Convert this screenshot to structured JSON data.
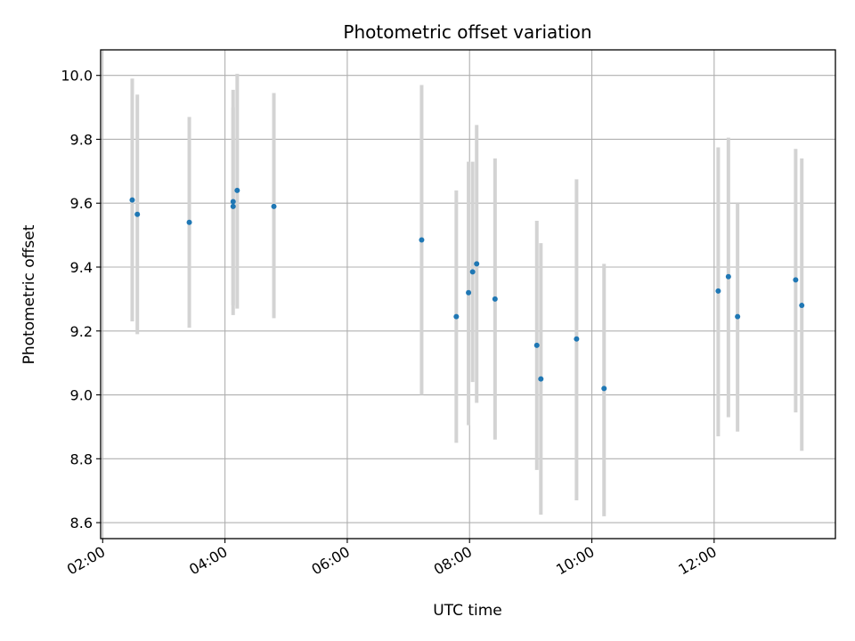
{
  "chart_data": {
    "type": "scatter",
    "title": "Photometric offset variation",
    "xlabel": "UTC time",
    "ylabel": "Photometric offset",
    "x_axis_kind": "time",
    "xlim": [
      "01:58",
      "13:59"
    ],
    "ylim": [
      8.55,
      10.08
    ],
    "grid": true,
    "x_ticks": [
      "02:00",
      "04:00",
      "06:00",
      "08:00",
      "10:00",
      "12:00"
    ],
    "y_ticks": [
      "8.6",
      "8.8",
      "9.0",
      "9.2",
      "9.4",
      "9.6",
      "9.8",
      "10.0"
    ],
    "colors": {
      "point": "#1f77b4",
      "errorbar": "#d3d3d3",
      "grid": "#b0b0b0"
    },
    "points": [
      {
        "x": "02:29",
        "y": 9.61,
        "y_low": 9.23,
        "y_high": 9.99
      },
      {
        "x": "02:34",
        "y": 9.565,
        "y_low": 9.19,
        "y_high": 9.94
      },
      {
        "x": "03:25",
        "y": 9.54,
        "y_low": 9.21,
        "y_high": 9.87
      },
      {
        "x": "04:08",
        "y": 9.605,
        "y_low": 9.25,
        "y_high": 9.955
      },
      {
        "x": "04:08",
        "y": 9.59,
        "y_low": 9.28,
        "y_high": 9.9
      },
      {
        "x": "04:12",
        "y": 9.64,
        "y_low": 9.27,
        "y_high": 10.005
      },
      {
        "x": "04:48",
        "y": 9.59,
        "y_low": 9.24,
        "y_high": 9.945
      },
      {
        "x": "07:13",
        "y": 9.485,
        "y_low": 9.0,
        "y_high": 9.97
      },
      {
        "x": "07:47",
        "y": 9.245,
        "y_low": 8.85,
        "y_high": 9.64
      },
      {
        "x": "07:59",
        "y": 9.32,
        "y_low": 8.905,
        "y_high": 9.73
      },
      {
        "x": "08:03",
        "y": 9.385,
        "y_low": 9.04,
        "y_high": 9.73
      },
      {
        "x": "08:07",
        "y": 9.41,
        "y_low": 8.975,
        "y_high": 9.845
      },
      {
        "x": "08:25",
        "y": 9.3,
        "y_low": 8.86,
        "y_high": 9.74
      },
      {
        "x": "09:06",
        "y": 9.155,
        "y_low": 8.765,
        "y_high": 9.545
      },
      {
        "x": "09:10",
        "y": 9.05,
        "y_low": 8.625,
        "y_high": 9.475
      },
      {
        "x": "09:45",
        "y": 9.175,
        "y_low": 8.67,
        "y_high": 9.675
      },
      {
        "x": "10:12",
        "y": 9.02,
        "y_low": 8.62,
        "y_high": 9.41
      },
      {
        "x": "12:04",
        "y": 9.325,
        "y_low": 8.87,
        "y_high": 9.775
      },
      {
        "x": "12:14",
        "y": 9.37,
        "y_low": 8.93,
        "y_high": 9.805
      },
      {
        "x": "12:23",
        "y": 9.245,
        "y_low": 8.885,
        "y_high": 9.6
      },
      {
        "x": "13:20",
        "y": 9.36,
        "y_low": 8.945,
        "y_high": 9.77
      },
      {
        "x": "13:26",
        "y": 9.28,
        "y_low": 8.825,
        "y_high": 9.74
      }
    ]
  }
}
